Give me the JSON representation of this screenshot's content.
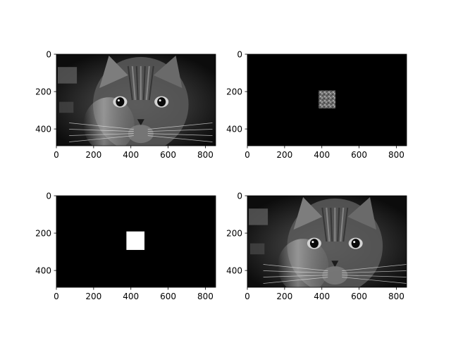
{
  "chart_data": [
    {
      "type": "image",
      "content": "grayscale photograph of a long-haired cat face",
      "xlim": [
        0,
        855
      ],
      "ylim": [
        490,
        0
      ],
      "xticks": [
        0,
        200,
        400,
        600,
        800
      ],
      "yticks": [
        0,
        200,
        400
      ]
    },
    {
      "type": "image",
      "content": "black image with a noisy gray square patch",
      "xlim": [
        0,
        855
      ],
      "ylim": [
        490,
        0
      ],
      "xticks": [
        0,
        200,
        400,
        600,
        800
      ],
      "yticks": [
        0,
        200,
        400
      ],
      "patch": {
        "x0": 383,
        "x1": 473,
        "y0": 194,
        "y1": 290,
        "gray": "#7a7a7a"
      }
    },
    {
      "type": "image",
      "content": "black mask with a white square",
      "xlim": [
        0,
        855
      ],
      "ylim": [
        490,
        0
      ],
      "xticks": [
        0,
        200,
        400,
        600,
        800
      ],
      "yticks": [
        0,
        200,
        400
      ],
      "patch": {
        "x0": 376,
        "x1": 473,
        "y0": 191,
        "y1": 290,
        "gray": "#ffffff"
      }
    },
    {
      "type": "image",
      "content": "grayscale photograph of a long-haired cat face, restored",
      "xlim": [
        0,
        855
      ],
      "ylim": [
        490,
        0
      ],
      "xticks": [
        0,
        200,
        400,
        600,
        800
      ],
      "yticks": [
        0,
        200,
        400
      ]
    }
  ]
}
